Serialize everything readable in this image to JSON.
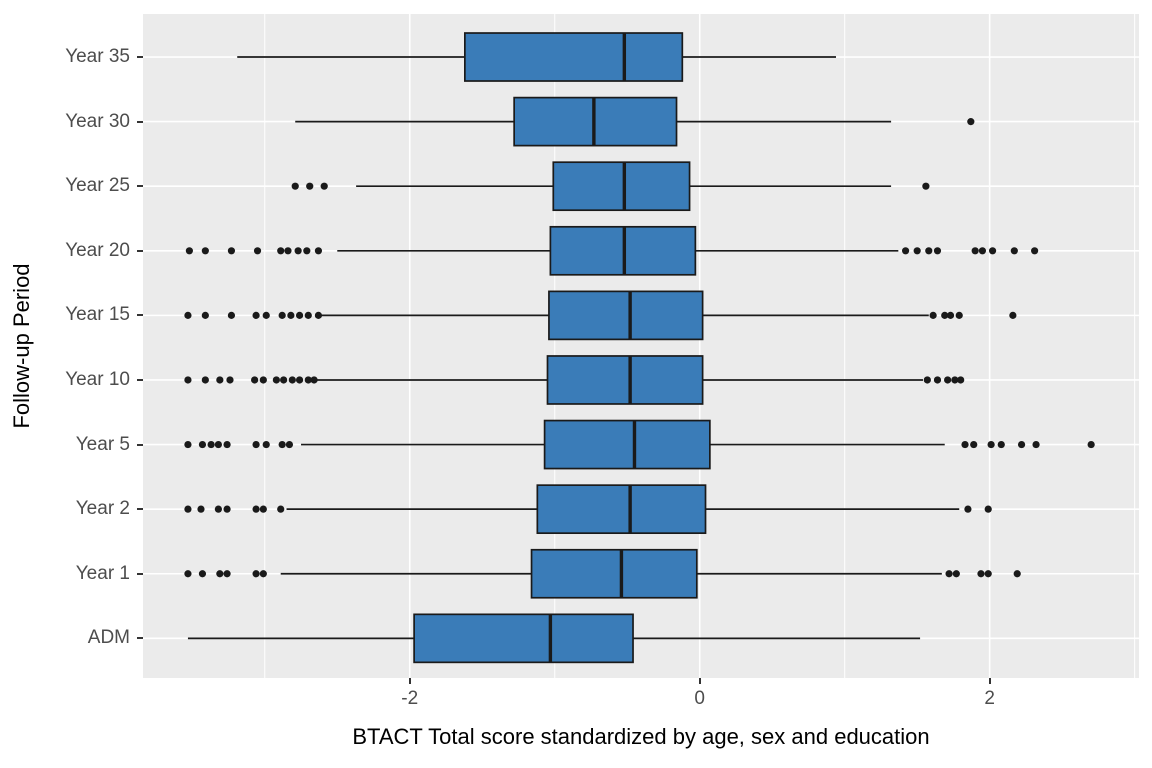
{
  "figure": {
    "background": "#FFFFFF",
    "panel_background": "#EBEBEB",
    "gridline_color": "#FFFFFF",
    "axis_text_color": "#4D4D4D",
    "axis_title_color": "#000000",
    "tick_mark_color": "#333333"
  },
  "chart_data": {
    "type": "boxplot",
    "orientation": "horizontal",
    "title": "",
    "xlabel": "BTACT Total score standardized by age, sex and education",
    "ylabel": "Follow-up Period",
    "x_axis": {
      "min": -3.84,
      "max": 3.03,
      "major_ticks": [
        -2,
        0,
        2
      ],
      "tick_labels": [
        "-2",
        "0",
        "2"
      ],
      "minor_gridlines": [
        -3,
        -1,
        1,
        3
      ]
    },
    "categories_top_to_bottom": [
      "Year 35",
      "Year 30",
      "Year 25",
      "Year 20",
      "Year 15",
      "Year 10",
      "Year 5",
      "Year 2",
      "Year 1",
      "ADM"
    ],
    "box_fill": "#3A7CB8",
    "box_stroke": "#1A1A1A",
    "outlier_color": "#1A1A1A",
    "series": [
      {
        "label": "Year 35",
        "whisker_low": -3.19,
        "q1": -1.62,
        "median": -0.52,
        "q3": -0.12,
        "whisker_high": 0.94,
        "outliers_low": [],
        "outliers_high": []
      },
      {
        "label": "Year 30",
        "whisker_low": -2.79,
        "q1": -1.28,
        "median": -0.73,
        "q3": -0.16,
        "whisker_high": 1.32,
        "outliers_low": [],
        "outliers_high": [
          1.87
        ]
      },
      {
        "label": "Year 25",
        "whisker_low": -2.37,
        "q1": -1.01,
        "median": -0.52,
        "q3": -0.07,
        "whisker_high": 1.32,
        "outliers_low": [
          -2.79,
          -2.69,
          -2.59
        ],
        "outliers_high": [
          1.56
        ]
      },
      {
        "label": "Year 20",
        "whisker_low": -2.5,
        "q1": -1.03,
        "median": -0.52,
        "q3": -0.03,
        "whisker_high": 1.37,
        "outliers_low": [
          -3.52,
          -3.41,
          -3.23,
          -3.05,
          -2.89,
          -2.84,
          -2.77,
          -2.71,
          -2.63
        ],
        "outliers_high": [
          1.42,
          1.5,
          1.58,
          1.64,
          1.9,
          1.95,
          2.02,
          2.17,
          2.31
        ]
      },
      {
        "label": "Year 15",
        "whisker_low": -2.61,
        "q1": -1.04,
        "median": -0.48,
        "q3": 0.02,
        "whisker_high": 1.58,
        "outliers_low": [
          -3.53,
          -3.41,
          -3.23,
          -3.06,
          -2.99,
          -2.88,
          -2.82,
          -2.76,
          -2.7,
          -2.63
        ],
        "outliers_high": [
          1.61,
          1.69,
          1.73,
          1.79,
          2.16
        ]
      },
      {
        "label": "Year 10",
        "whisker_low": -2.64,
        "q1": -1.05,
        "median": -0.48,
        "q3": 0.02,
        "whisker_high": 1.54,
        "outliers_low": [
          -3.53,
          -3.41,
          -3.31,
          -3.24,
          -3.07,
          -3.01,
          -2.92,
          -2.87,
          -2.81,
          -2.76,
          -2.7,
          -2.66
        ],
        "outliers_high": [
          1.57,
          1.64,
          1.71,
          1.76,
          1.8
        ]
      },
      {
        "label": "Year 5",
        "whisker_low": -2.75,
        "q1": -1.07,
        "median": -0.45,
        "q3": 0.07,
        "whisker_high": 1.69,
        "outliers_low": [
          -3.53,
          -3.43,
          -3.37,
          -3.32,
          -3.26,
          -3.06,
          -2.99,
          -2.88,
          -2.83
        ],
        "outliers_high": [
          1.83,
          1.89,
          2.01,
          2.08,
          2.22,
          2.32,
          2.7
        ]
      },
      {
        "label": "Year 2",
        "whisker_low": -2.85,
        "q1": -1.12,
        "median": -0.48,
        "q3": 0.04,
        "whisker_high": 1.79,
        "outliers_low": [
          -3.53,
          -3.44,
          -3.32,
          -3.26,
          -3.06,
          -3.01,
          -2.89
        ],
        "outliers_high": [
          1.85,
          1.99
        ]
      },
      {
        "label": "Year 1",
        "whisker_low": -2.89,
        "q1": -1.16,
        "median": -0.54,
        "q3": -0.02,
        "whisker_high": 1.67,
        "outliers_low": [
          -3.53,
          -3.43,
          -3.31,
          -3.26,
          -3.06,
          -3.01
        ],
        "outliers_high": [
          1.72,
          1.77,
          1.94,
          1.99,
          2.19
        ]
      },
      {
        "label": "ADM",
        "whisker_low": -3.53,
        "q1": -1.97,
        "median": -1.03,
        "q3": -0.46,
        "whisker_high": 1.52,
        "outliers_low": [],
        "outliers_high": []
      }
    ]
  }
}
